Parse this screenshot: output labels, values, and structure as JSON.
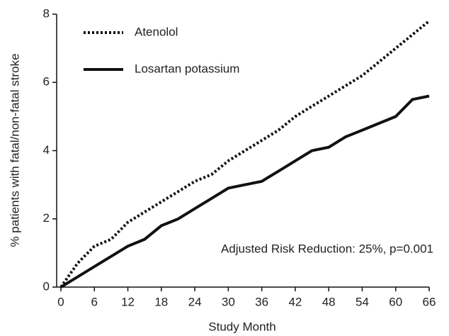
{
  "chart_data": {
    "type": "line",
    "x_label": "Study Month",
    "y_label": "% patients with fatal/non-fatal stroke",
    "annotation": "Adjusted Risk Reduction: 25%, p=0.001",
    "x": [
      0,
      3,
      6,
      9,
      12,
      15,
      18,
      21,
      24,
      27,
      30,
      33,
      36,
      39,
      42,
      45,
      48,
      51,
      54,
      57,
      60,
      63,
      66
    ],
    "series": [
      {
        "name": "Atenolol",
        "color": "#111111",
        "style": "dotted",
        "values": [
          0,
          0.7,
          1.2,
          1.4,
          1.9,
          2.2,
          2.5,
          2.8,
          3.1,
          3.3,
          3.7,
          4.0,
          4.3,
          4.6,
          5.0,
          5.3,
          5.6,
          5.9,
          6.2,
          6.6,
          7.0,
          7.4,
          7.8
        ]
      },
      {
        "name": "Losartan potassium",
        "color": "#111111",
        "style": "solid",
        "values": [
          0,
          0.3,
          0.6,
          0.9,
          1.2,
          1.4,
          1.8,
          2.0,
          2.3,
          2.6,
          2.9,
          3.0,
          3.1,
          3.4,
          3.7,
          4.0,
          4.1,
          4.4,
          4.6,
          4.8,
          5.0,
          5.5,
          5.6
        ]
      }
    ],
    "xlim": [
      0,
      66
    ],
    "xticks": [
      0,
      6,
      12,
      18,
      24,
      30,
      36,
      42,
      48,
      54,
      60,
      66
    ],
    "ylim": [
      0,
      8
    ],
    "yticks": [
      0,
      2,
      4,
      6,
      8
    ],
    "grid": false,
    "legend": "top-left"
  }
}
